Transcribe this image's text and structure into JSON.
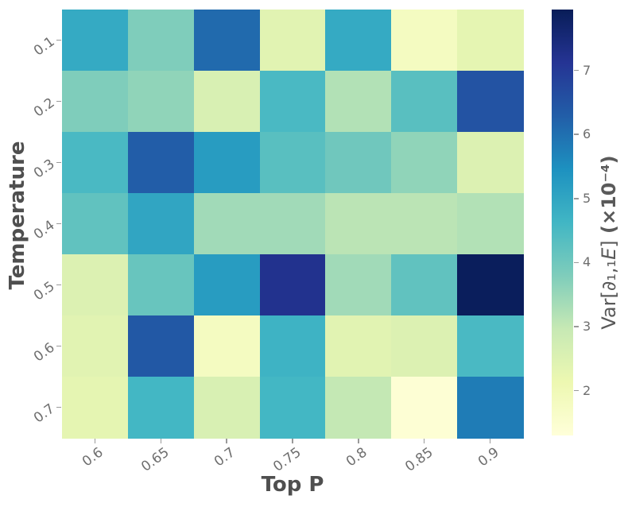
{
  "figure": {
    "xlabel": "Top P",
    "ylabel": "Temperature",
    "colorbar_label_prefix": "Var[∂₁,₁",
    "colorbar_label_E": "E",
    "colorbar_label_close": "]",
    "colorbar_label_units": " (×10⁻⁴)",
    "background": "#ffffff",
    "title_color": "#4f4f4f",
    "tick_color": "#6e6e6e"
  },
  "chart_data": {
    "type": "heatmap",
    "title": "",
    "xlabel": "Top P",
    "ylabel": "Temperature",
    "x_tick_labels": [
      "0.6",
      "0.65",
      "0.7",
      "0.75",
      "0.8",
      "0.85",
      "0.9"
    ],
    "y_tick_labels": [
      "0.1",
      "0.2",
      "0.3",
      "0.4",
      "0.5",
      "0.6",
      "0.7"
    ],
    "values_unit": "×10⁻⁴",
    "values": [
      [
        4.9,
        3.8,
        6.1,
        2.4,
        4.9,
        1.8,
        2.3
      ],
      [
        3.8,
        3.6,
        2.6,
        4.5,
        3.2,
        4.3,
        6.5
      ],
      [
        4.5,
        6.3,
        5.2,
        4.3,
        4.0,
        3.6,
        2.5
      ],
      [
        4.2,
        5.0,
        3.4,
        3.4,
        3.1,
        3.1,
        3.2
      ],
      [
        2.5,
        4.1,
        5.2,
        7.2,
        3.4,
        4.2,
        7.9
      ],
      [
        2.4,
        6.4,
        1.8,
        4.7,
        2.4,
        2.5,
        4.5
      ],
      [
        2.3,
        4.6,
        2.6,
        4.6,
        3.0,
        1.4,
        5.8
      ]
    ],
    "vmin": 1.3,
    "vmax": 7.95,
    "colorbar": {
      "label": "Var[∂₁,₁E] (×10⁻⁴)",
      "ticks": [
        2,
        3,
        4,
        5,
        6,
        7
      ],
      "position": "right"
    },
    "colormap": {
      "name": "YlGnBu",
      "stops": [
        [
          0.0,
          "#ffffd9"
        ],
        [
          0.125,
          "#edf8b1"
        ],
        [
          0.25,
          "#c7e9b4"
        ],
        [
          0.375,
          "#7fcdbb"
        ],
        [
          0.5,
          "#41b6c4"
        ],
        [
          0.625,
          "#1d91c0"
        ],
        [
          0.75,
          "#225ea8"
        ],
        [
          0.875,
          "#253494"
        ],
        [
          1.0,
          "#081d58"
        ]
      ]
    },
    "grid": false,
    "legend": null
  }
}
